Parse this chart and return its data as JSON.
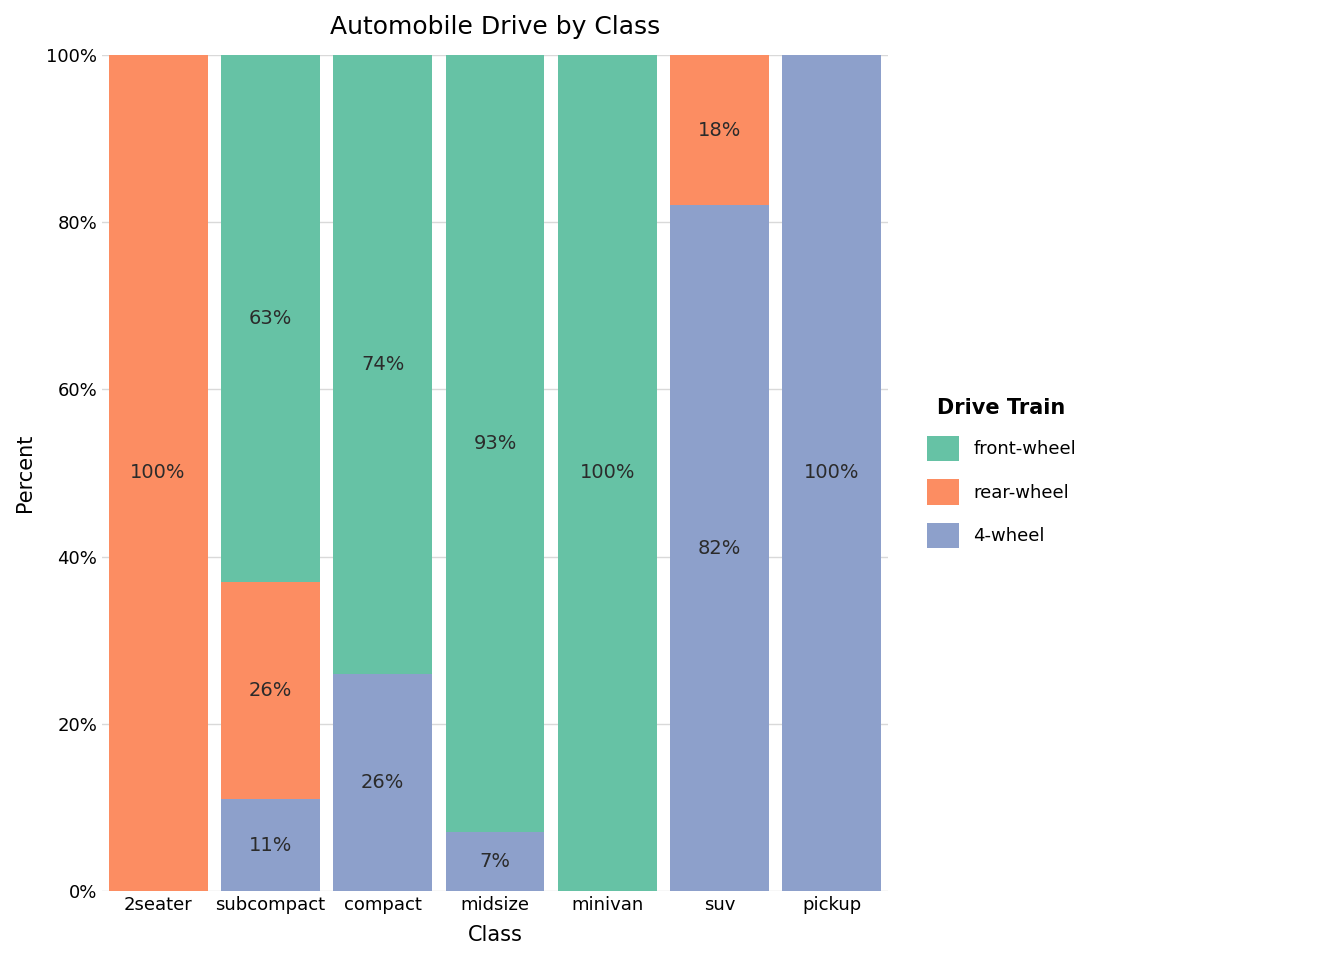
{
  "title": "Automobile Drive by Class",
  "xlabel": "Class",
  "ylabel": "Percent",
  "categories": [
    "2seater",
    "subcompact",
    "compact",
    "midsize",
    "minivan",
    "suv",
    "pickup"
  ],
  "segments": {
    "front-wheel": [
      0,
      63,
      74,
      93,
      100,
      0,
      0
    ],
    "rear-wheel": [
      100,
      26,
      0,
      0,
      0,
      18,
      0
    ],
    "4-wheel": [
      0,
      11,
      26,
      7,
      0,
      82,
      100
    ]
  },
  "colors": {
    "front-wheel": "#66C2A5",
    "rear-wheel": "#FC8D62",
    "4-wheel": "#8DA0CB"
  },
  "legend_title": "Drive Train",
  "legend_order": [
    "front-wheel",
    "rear-wheel",
    "4-wheel"
  ],
  "yticks": [
    0,
    20,
    40,
    60,
    80,
    100
  ],
  "ytick_labels": [
    "0%",
    "20%",
    "40%",
    "60%",
    "80%",
    "100%"
  ],
  "plot_background_color": "#FFFFFF",
  "fig_background_color": "#FFFFFF",
  "grid_color": "#D9D9D9",
  "bar_width": 0.88,
  "label_fontsize": 14,
  "title_fontsize": 18,
  "axis_label_fontsize": 15,
  "tick_fontsize": 13,
  "legend_fontsize": 13,
  "legend_title_fontsize": 15
}
